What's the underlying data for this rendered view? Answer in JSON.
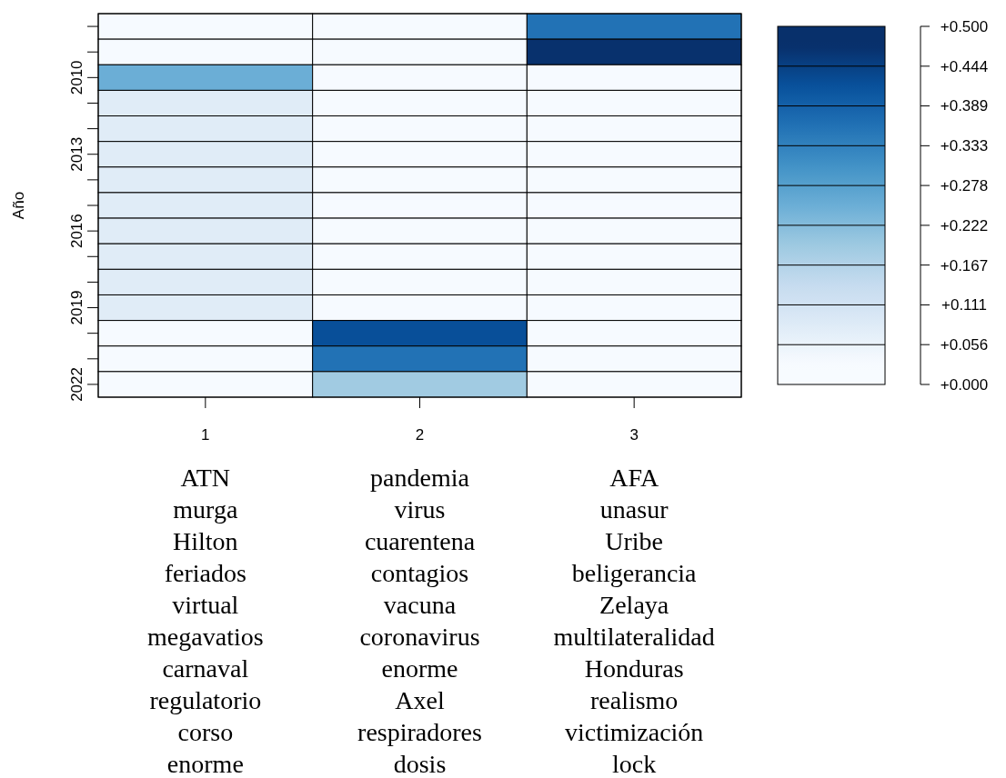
{
  "chart_data": {
    "type": "heatmap",
    "ylabel": "Año",
    "categories": [
      "1",
      "2",
      "3"
    ],
    "y_categories": [
      null,
      null,
      "2010",
      null,
      null,
      "2013",
      null,
      null,
      "2016",
      null,
      null,
      "2019",
      null,
      null,
      "2022"
    ],
    "cells": [
      [
        0.03,
        0.03,
        0.36
      ],
      [
        0.03,
        0.03,
        0.47
      ],
      [
        0.25,
        0.03,
        0.03
      ],
      [
        0.08,
        0.03,
        0.03
      ],
      [
        0.08,
        0.03,
        0.03
      ],
      [
        0.08,
        0.03,
        0.03
      ],
      [
        0.08,
        0.03,
        0.03
      ],
      [
        0.08,
        0.03,
        0.03
      ],
      [
        0.08,
        0.03,
        0.03
      ],
      [
        0.08,
        0.03,
        0.03
      ],
      [
        0.08,
        0.03,
        0.03
      ],
      [
        0.08,
        0.03,
        0.03
      ],
      [
        0.03,
        0.42,
        0.03
      ],
      [
        0.03,
        0.36,
        0.03
      ],
      [
        0.03,
        0.19,
        0.03
      ]
    ],
    "clim": [
      0,
      0.5
    ],
    "cticks": [
      {
        "value": 0,
        "label": "+0.000"
      },
      {
        "value": 0.0556,
        "label": "+0.056"
      },
      {
        "value": 0.1111,
        "label": "+0.111"
      },
      {
        "value": 0.1667,
        "label": "+0.167"
      },
      {
        "value": 0.2222,
        "label": "+0.222"
      },
      {
        "value": 0.2778,
        "label": "+0.278"
      },
      {
        "value": 0.3333,
        "label": "+0.333"
      },
      {
        "value": 0.3889,
        "label": "+0.389"
      },
      {
        "value": 0.4444,
        "label": "+0.444"
      },
      {
        "value": 0.5,
        "label": "+0.500"
      }
    ],
    "annotations": [
      "ATN",
      "murga",
      "Hilton",
      "feriados",
      "virtual",
      "megavatios",
      "carnaval",
      "regulatorio",
      "corso",
      "enorme",
      "pandemia",
      "virus",
      "cuarentena",
      "contagios",
      "vacuna",
      "coronavirus",
      "enorme",
      "Axel",
      "respiradores",
      "dosis",
      "AFA",
      "unasur",
      "Uribe",
      "beligerancia",
      "Zelaya",
      "multilateralidad",
      "Honduras",
      "realismo",
      "victimización",
      "lock"
    ]
  }
}
